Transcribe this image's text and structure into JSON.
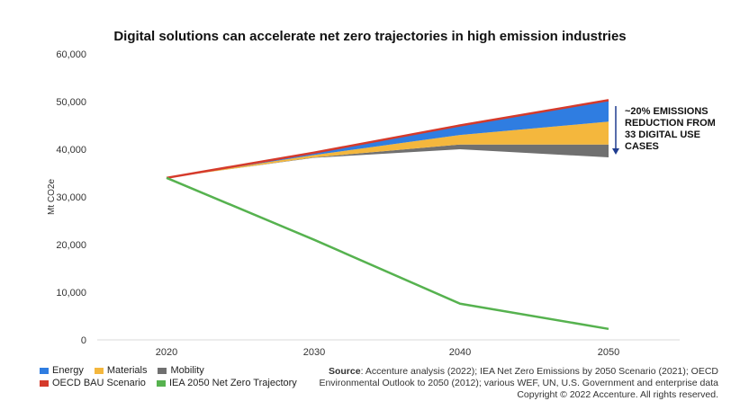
{
  "chart_data": {
    "type": "area",
    "title": "Digital solutions can accelerate net zero trajectories in high emission industries",
    "ylabel": "Mt CO2e",
    "xlabel": "",
    "x": [
      2020,
      2030,
      2040,
      2050
    ],
    "xticks": [
      "2020",
      "2030",
      "2040",
      "2050"
    ],
    "ylim": [
      0,
      60000
    ],
    "yticks": [
      "0",
      "10,000",
      "20,000",
      "30,000",
      "40,000",
      "50,000",
      "60,000"
    ],
    "yticks_values": [
      0,
      10000,
      20000,
      30000,
      40000,
      50000,
      60000
    ],
    "grid": false,
    "legend_position": "bottom-left",
    "series": [
      {
        "name": "Mobility",
        "kind": "stacked-area",
        "color": "#707070",
        "lower": [
          34000,
          38200,
          40000,
          38300
        ],
        "upper": [
          34000,
          38300,
          41000,
          41000
        ]
      },
      {
        "name": "Materials",
        "kind": "stacked-area",
        "color": "#f4b73d",
        "lower": [
          34000,
          38300,
          41000,
          41000
        ],
        "upper": [
          34000,
          38800,
          43000,
          45800
        ]
      },
      {
        "name": "Energy",
        "kind": "stacked-area",
        "color": "#2f7de1",
        "lower": [
          34000,
          38800,
          43000,
          45800
        ],
        "upper": [
          34000,
          39300,
          45000,
          50300
        ]
      },
      {
        "name": "OECD BAU Scenario",
        "kind": "line",
        "color": "#d53a2b",
        "values": [
          34000,
          39300,
          45000,
          50300
        ]
      },
      {
        "name": "IEA 2050 Net Zero Trajectory",
        "kind": "line",
        "color": "#56b24f",
        "values": [
          34000,
          21000,
          7600,
          2300
        ]
      }
    ],
    "annotation": {
      "lines": [
        "~20% EMISSIONS",
        "REDUCTION FROM",
        "33 DIGITAL USE",
        "CASES"
      ],
      "arrow_color": "#1f3c8f"
    }
  },
  "legend": {
    "row1": [
      {
        "label": "Energy",
        "color": "#2f7de1"
      },
      {
        "label": "Materials",
        "color": "#f4b73d"
      },
      {
        "label": "Mobility",
        "color": "#707070"
      }
    ],
    "row2": [
      {
        "label": "OECD BAU Scenario",
        "color": "#d53a2b"
      },
      {
        "label": "IEA 2050 Net Zero Trajectory",
        "color": "#56b24f"
      }
    ]
  },
  "source": {
    "label": "Source",
    "line1": ": Accenture analysis (2022); IEA Net Zero Emissions by 2050 Scenario (2021); OECD",
    "line2": "Environmental Outlook to 2050 (2012); various WEF, UN, U.S. Government and enterprise data",
    "line3": "Copyright © 2022 Accenture. All rights reserved."
  }
}
